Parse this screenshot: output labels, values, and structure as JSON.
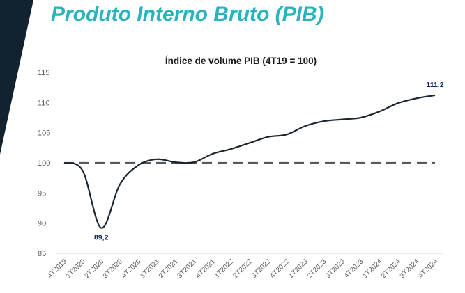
{
  "header": {
    "title": "Produto Interno Bruto (PIB)"
  },
  "colors": {
    "title": "#2bb3bd",
    "side_panel": "#12222f",
    "line": "#1a2530",
    "baseline": "#595959",
    "data_label": "#0f2a5a"
  },
  "chart_data": {
    "type": "line",
    "title": "Índice de volume PIB (4T19 = 100)",
    "xlabel": "",
    "ylabel": "",
    "ylim": [
      85,
      115
    ],
    "yticks": [
      85,
      90,
      95,
      100,
      105,
      110,
      115
    ],
    "grid": false,
    "legend": "none",
    "categories": [
      "4T2019",
      "1T2020",
      "2T2020",
      "3T2020",
      "4T2020",
      "1T2021",
      "2T2021",
      "3T2021",
      "4T2021",
      "1T2022",
      "2T2022",
      "3T2022",
      "4T2022",
      "1T2023",
      "2T2023",
      "3T2023",
      "4T2023",
      "1T2024",
      "2T2024",
      "3T2024",
      "4T2024"
    ],
    "series": [
      {
        "name": "Índice de volume PIB",
        "values": [
          100.0,
          98.7,
          89.2,
          96.4,
          99.6,
          100.6,
          100.1,
          100.1,
          101.5,
          102.3,
          103.3,
          104.3,
          104.7,
          106.1,
          106.9,
          107.2,
          107.5,
          108.5,
          109.9,
          110.7,
          111.2
        ],
        "smooth": true
      }
    ],
    "reference_line": {
      "value": 100,
      "style": "dashed"
    },
    "annotations": [
      {
        "category": "2T2020",
        "text": "89,2",
        "position": "below"
      },
      {
        "category": "4T2024",
        "text": "111,2",
        "position": "above"
      }
    ]
  }
}
